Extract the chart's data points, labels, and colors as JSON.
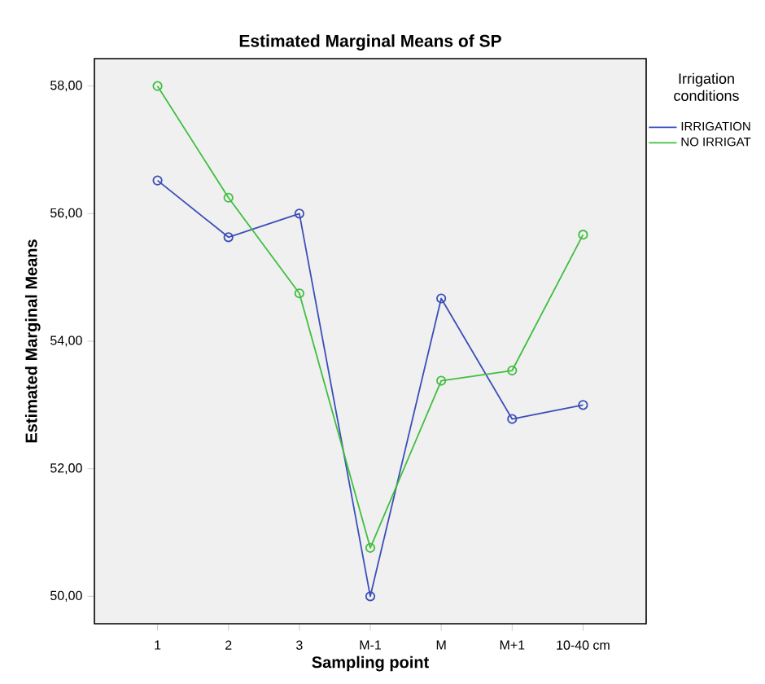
{
  "chart_data": {
    "type": "line",
    "title": "Estimated Marginal Means of SP",
    "xlabel": "Sampling point",
    "ylabel": "Estimated Marginal Means",
    "legend_title": "Irrigation conditions",
    "categories": [
      "1",
      "2",
      "3",
      "M-1",
      "M",
      "M+1",
      "10-40 cm"
    ],
    "series": [
      {
        "name": "IRRIGATION",
        "color": "#3b4fb8",
        "values": [
          56.52,
          55.63,
          56.0,
          50.0,
          54.67,
          52.78,
          53.0
        ]
      },
      {
        "name": "NO IRRIGAT",
        "color": "#3fbf3f",
        "values": [
          58.0,
          56.25,
          54.75,
          50.76,
          53.38,
          53.54,
          55.67
        ]
      }
    ],
    "ylim": [
      49.57,
      58.43
    ],
    "yticks": [
      {
        "value": 50,
        "label": "50,00"
      },
      {
        "value": 52,
        "label": "52,00"
      },
      {
        "value": 54,
        "label": "54,00"
      },
      {
        "value": 56,
        "label": "56,00"
      },
      {
        "value": 58,
        "label": "58,00"
      }
    ],
    "legend": "right",
    "marker": "circle",
    "line_style": "solid"
  }
}
